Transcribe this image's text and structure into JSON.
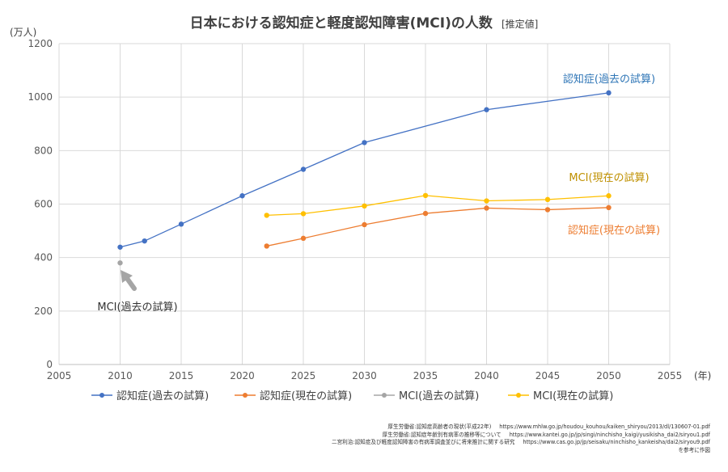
{
  "chart_data": {
    "type": "line",
    "title": "日本における認知症と軽度認知障害(MCI)の人数",
    "title_suffix": "[推定値]",
    "y_unit": "(万人)",
    "x_unit": "(年)",
    "xlim": [
      2005,
      2055
    ],
    "ylim": [
      0,
      1200
    ],
    "x_ticks": [
      2005,
      2010,
      2015,
      2020,
      2025,
      2030,
      2035,
      2040,
      2045,
      2050,
      2055
    ],
    "y_ticks": [
      0,
      200,
      400,
      600,
      800,
      1000,
      1200
    ],
    "grid": true,
    "legend_position": "bottom",
    "series": [
      {
        "name": "認知症(過去の試算)",
        "color": "#4472C4",
        "x": [
          2010,
          2012,
          2015,
          2020,
          2025,
          2030,
          2040,
          2050
        ],
        "y": [
          439,
          462,
          525,
          631,
          730,
          830,
          953,
          1016
        ]
      },
      {
        "name": "認知症(現在の試算)",
        "color": "#ED7D31",
        "x": [
          2022,
          2025,
          2030,
          2035,
          2040,
          2045,
          2050
        ],
        "y": [
          443,
          472,
          523,
          565,
          585,
          579,
          587
        ]
      },
      {
        "name": "MCI(過去の試算)",
        "color": "#A5A5A5",
        "x": [
          2010
        ],
        "y": [
          380
        ]
      },
      {
        "name": "MCI(現在の試算)",
        "color": "#FFC000",
        "x": [
          2022,
          2025,
          2030,
          2035,
          2040,
          2045,
          2050
        ],
        "y": [
          558,
          564,
          593,
          632,
          612,
          617,
          631
        ]
      }
    ],
    "annotations": [
      {
        "text": "認知症(過去の試算)",
        "color": "#2E75B6"
      },
      {
        "text": "MCI(現在の試算)",
        "color": "#BF9000"
      },
      {
        "text": "認知症(現在の試算)",
        "color": "#ED7D31"
      },
      {
        "text": "MCI(過去の試算)",
        "color": "#333333"
      }
    ]
  },
  "sources": [
    {
      "label": "厚生労働省:認知症高齢者の現状(平成22年)",
      "url": "https://www.mhlw.go.jp/houdou_kouhou/kaiken_shiryou/2013/dl/130607-01.pdf"
    },
    {
      "label": "厚生労働省:認知症年齢別有病率の推移等について",
      "url": "https://www.kantei.go.jp/jp/singi/ninchisho_kaigi/yusikisha_dai2/siryou1.pdf"
    },
    {
      "label": "二宮利治:認知症及び軽度認知障害の有病率調査並びに将来推計に関する研究",
      "url": "https://www.cas.go.jp/jp/seisaku/ninchisho_kankeisha/dai2/siryou9.pdf"
    }
  ],
  "credit": "を参考に作図"
}
